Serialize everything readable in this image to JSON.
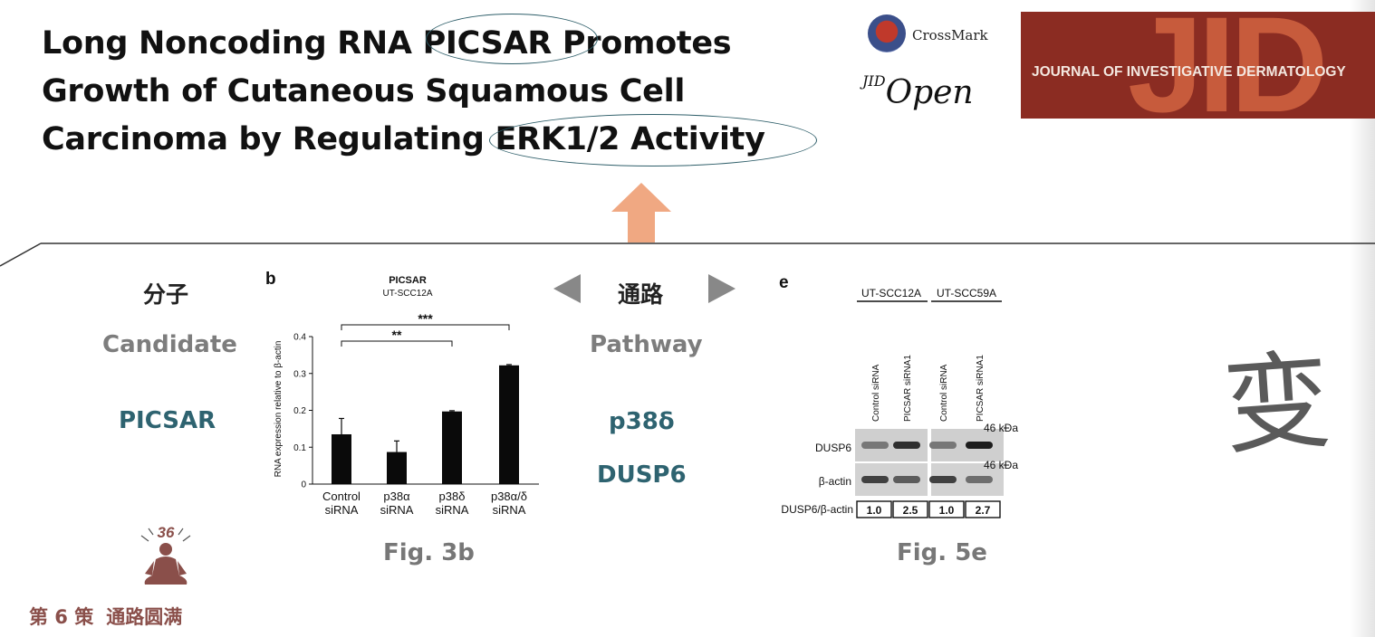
{
  "paper": {
    "title_lines": [
      "Long Noncoding RNA PICSAR Promotes",
      "Growth of Cutaneous Squamous Cell",
      "Carcinoma by Regulating ERK1/2 Activity"
    ],
    "crossmark": "CrossMark",
    "jid_open_sup": "JID",
    "jid_open_word": "Open",
    "journal_banner_big": "JID",
    "journal_banner": "JOURNAL OF INVESTIGATIVE DERMATOLOGY"
  },
  "left_panel": {
    "heading": "分子",
    "sub": "Candidate",
    "item": "PICSAR"
  },
  "middle_panel": {
    "heading": "通路",
    "sub": "Pathway",
    "items": [
      "p38δ",
      "DUSP6"
    ]
  },
  "figure_captions": {
    "fig3b": "Fig. 3b",
    "fig5e": "Fig. 5e"
  },
  "side_char": "变",
  "badge_number": "36",
  "bottom_label": {
    "part1": "第 6 策",
    "part2": "通路圆满"
  },
  "colors": {
    "teal": "#2e6370",
    "arrow": "#f0a882",
    "banner": "#8b2c22"
  },
  "chart_data": {
    "type": "bar",
    "panel_label": "b",
    "title": "PICSAR",
    "subtitle": "UT-SCC12A",
    "ylabel": "RNA expression relative to β-actin",
    "ylim": [
      0,
      0.4
    ],
    "yticks": [
      0,
      0.1,
      0.2,
      0.3,
      0.4
    ],
    "categories": [
      [
        "Control",
        "siRNA"
      ],
      [
        "p38α",
        "siRNA"
      ],
      [
        "p38δ",
        "siRNA"
      ],
      [
        "p38α/δ",
        "siRNA"
      ]
    ],
    "values": [
      0.135,
      0.087,
      0.197,
      0.322
    ],
    "errors": [
      0.043,
      0.03,
      0.002,
      0.002
    ],
    "significance": [
      {
        "from": 0,
        "to": 2,
        "label": "**"
      },
      {
        "from": 0,
        "to": 3,
        "label": "***"
      }
    ],
    "grid": false
  },
  "western_blot": {
    "panel_label": "e",
    "cell_lines": [
      "UT-SCC12A",
      "UT-SCC59A"
    ],
    "lanes": [
      "Control siRNA",
      "PICSAR siRNA1",
      "Control siRNA",
      "PICSAR siRNA1"
    ],
    "rows": [
      "DUSP6",
      "β-actin"
    ],
    "markers": [
      "46 kDa",
      "46 kDa"
    ],
    "ratio_label": "DUSP6/β-actin",
    "ratios": [
      "1.0",
      "2.5",
      "1.0",
      "2.7"
    ],
    "dusp6_intensity": [
      0.45,
      0.85,
      0.45,
      0.95
    ],
    "actin_intensity": [
      0.75,
      0.6,
      0.75,
      0.5
    ]
  }
}
